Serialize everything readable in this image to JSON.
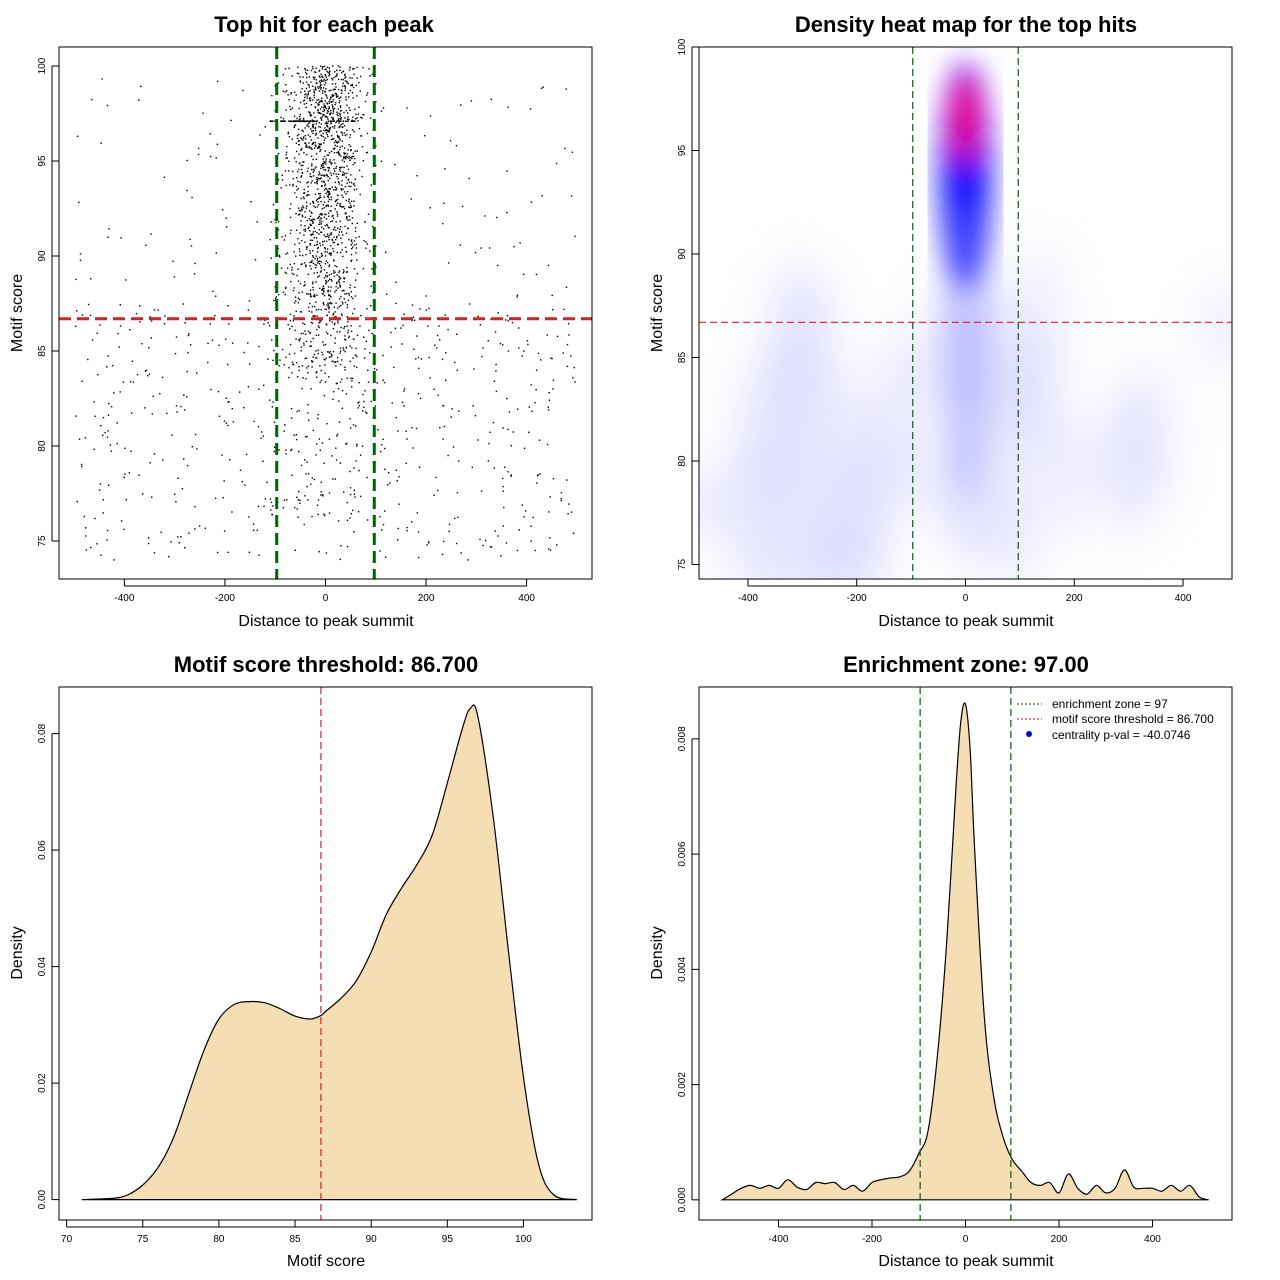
{
  "chart_data": [
    {
      "id": "p1",
      "type": "scatter",
      "title": "Top hit for each peak",
      "xlabel": "Distance to peak summit",
      "ylabel": "Motif score",
      "xlim": [
        -530,
        530
      ],
      "ylim": [
        73,
        101
      ],
      "xticks": [
        -400,
        -200,
        0,
        200,
        400
      ],
      "yticks": [
        75,
        80,
        85,
        90,
        95,
        100
      ],
      "vlines": [
        -97,
        97
      ],
      "hline": 86.7,
      "point_model": {
        "groups": [
          {
            "name": "central",
            "count": 1400,
            "x_center": 0,
            "x_sd": 38,
            "x_range": [
              -100,
              100
            ],
            "y_dist": "skewed-high",
            "y_range": [
              84,
              100
            ]
          },
          {
            "name": "central-low",
            "count": 260,
            "x_center": 0,
            "x_sd": 60,
            "x_range": [
              -150,
              150
            ],
            "y_range": [
              76,
              92
            ]
          },
          {
            "name": "background-low",
            "count": 520,
            "x_range": [
              -500,
              500
            ],
            "y_range": [
              74,
              88
            ]
          },
          {
            "name": "background-high",
            "count": 160,
            "x_range": [
              -500,
              500
            ],
            "y_range": [
              85,
              99.5
            ]
          }
        ]
      }
    },
    {
      "id": "p2",
      "type": "heatmap",
      "title": "Density heat map for the top hits",
      "xlabel": "Distance to peak summit",
      "ylabel": "Motif score",
      "xlim": [
        -490,
        490
      ],
      "ylim": [
        74.3,
        100
      ],
      "xticks": [
        -400,
        -200,
        0,
        200,
        400
      ],
      "yticks": [
        75,
        80,
        85,
        90,
        95,
        100
      ],
      "vlines": [
        -97,
        97
      ],
      "hline": 86.7,
      "colors": [
        "#ffffff",
        "#0000ff",
        "#ff0000"
      ],
      "peak": {
        "x": 0,
        "y": 96.5
      }
    },
    {
      "id": "p3",
      "type": "area",
      "title": "Motif score threshold: 86.700",
      "xlabel": "Motif score",
      "ylabel": "Density",
      "xlim": [
        69.5,
        104.5
      ],
      "ylim": [
        -0.0035,
        0.088
      ],
      "xticks": [
        70,
        75,
        80,
        85,
        90,
        95,
        100
      ],
      "yticks": [
        0.0,
        0.02,
        0.04,
        0.06,
        0.08
      ],
      "ytick_labels": [
        "0.00",
        "0.02",
        "0.04",
        "0.06",
        "0.08"
      ],
      "vline": 86.7,
      "fill": "#f5deb3",
      "x": [
        71,
        73,
        74,
        75,
        76,
        77,
        78,
        79,
        80,
        81,
        82,
        83,
        84,
        85,
        86,
        86.7,
        87,
        88,
        89,
        90,
        91,
        92,
        93,
        94,
        95,
        96,
        96.5,
        97,
        98,
        99,
        100,
        101,
        102,
        103.5
      ],
      "y": [
        0.0,
        0.0002,
        0.0008,
        0.0025,
        0.0055,
        0.0105,
        0.018,
        0.0255,
        0.031,
        0.0335,
        0.034,
        0.0338,
        0.0328,
        0.0315,
        0.031,
        0.0316,
        0.0323,
        0.0345,
        0.0375,
        0.0425,
        0.049,
        0.0535,
        0.0575,
        0.0625,
        0.0715,
        0.081,
        0.0843,
        0.083,
        0.066,
        0.043,
        0.021,
        0.006,
        0.0008,
        0.0
      ]
    },
    {
      "id": "p4",
      "type": "area",
      "title": "Enrichment zone: 97.00",
      "xlabel": "Distance to peak summit",
      "ylabel": "Density",
      "xlim": [
        -570,
        570
      ],
      "ylim": [
        -0.00035,
        0.0089
      ],
      "xticks": [
        -400,
        -200,
        0,
        200,
        400
      ],
      "yticks": [
        0.0,
        0.002,
        0.004,
        0.006,
        0.008
      ],
      "ytick_labels": [
        "0.000",
        "0.002",
        "0.004",
        "0.006",
        "0.008"
      ],
      "vlines": [
        -97,
        97
      ],
      "fill": "#f5deb3",
      "x": [
        -520,
        -500,
        -480,
        -460,
        -440,
        -420,
        -400,
        -380,
        -360,
        -340,
        -320,
        -300,
        -280,
        -260,
        -240,
        -220,
        -200,
        -180,
        -160,
        -140,
        -120,
        -100,
        -80,
        -60,
        -40,
        -20,
        -10,
        0,
        10,
        20,
        40,
        60,
        80,
        100,
        120,
        140,
        160,
        180,
        200,
        220,
        240,
        260,
        280,
        300,
        320,
        340,
        360,
        380,
        400,
        420,
        440,
        460,
        480,
        500,
        520
      ],
      "y": [
        0.0,
        0.0001,
        0.0002,
        0.00025,
        0.0002,
        0.00025,
        0.0002,
        0.00035,
        0.00022,
        0.00018,
        0.0003,
        0.00028,
        0.0003,
        0.00018,
        0.00025,
        0.00015,
        0.0003,
        0.00035,
        0.00038,
        0.0004,
        0.0005,
        0.0008,
        0.0012,
        0.0025,
        0.0045,
        0.0072,
        0.0083,
        0.0086,
        0.0078,
        0.006,
        0.0032,
        0.0018,
        0.0011,
        0.0007,
        0.0005,
        0.0003,
        0.00025,
        0.0003,
        0.00012,
        0.00045,
        0.0002,
        0.0001,
        0.00025,
        0.00012,
        0.0002,
        0.00052,
        0.00022,
        0.0002,
        0.0002,
        0.00015,
        0.00025,
        0.00015,
        0.00025,
        5e-05,
        0.0
      ],
      "legend": {
        "position": "top-right",
        "entries": [
          {
            "label": "enrichment zone = 97",
            "color": "#006400",
            "kind": "dotted-line"
          },
          {
            "label": "motif score threshold = 86.700",
            "color": "#ff0000",
            "kind": "dotted-line"
          },
          {
            "label": "centrality p-val = -40.0746",
            "color": "#0000ff",
            "kind": "dot"
          }
        ]
      }
    }
  ]
}
